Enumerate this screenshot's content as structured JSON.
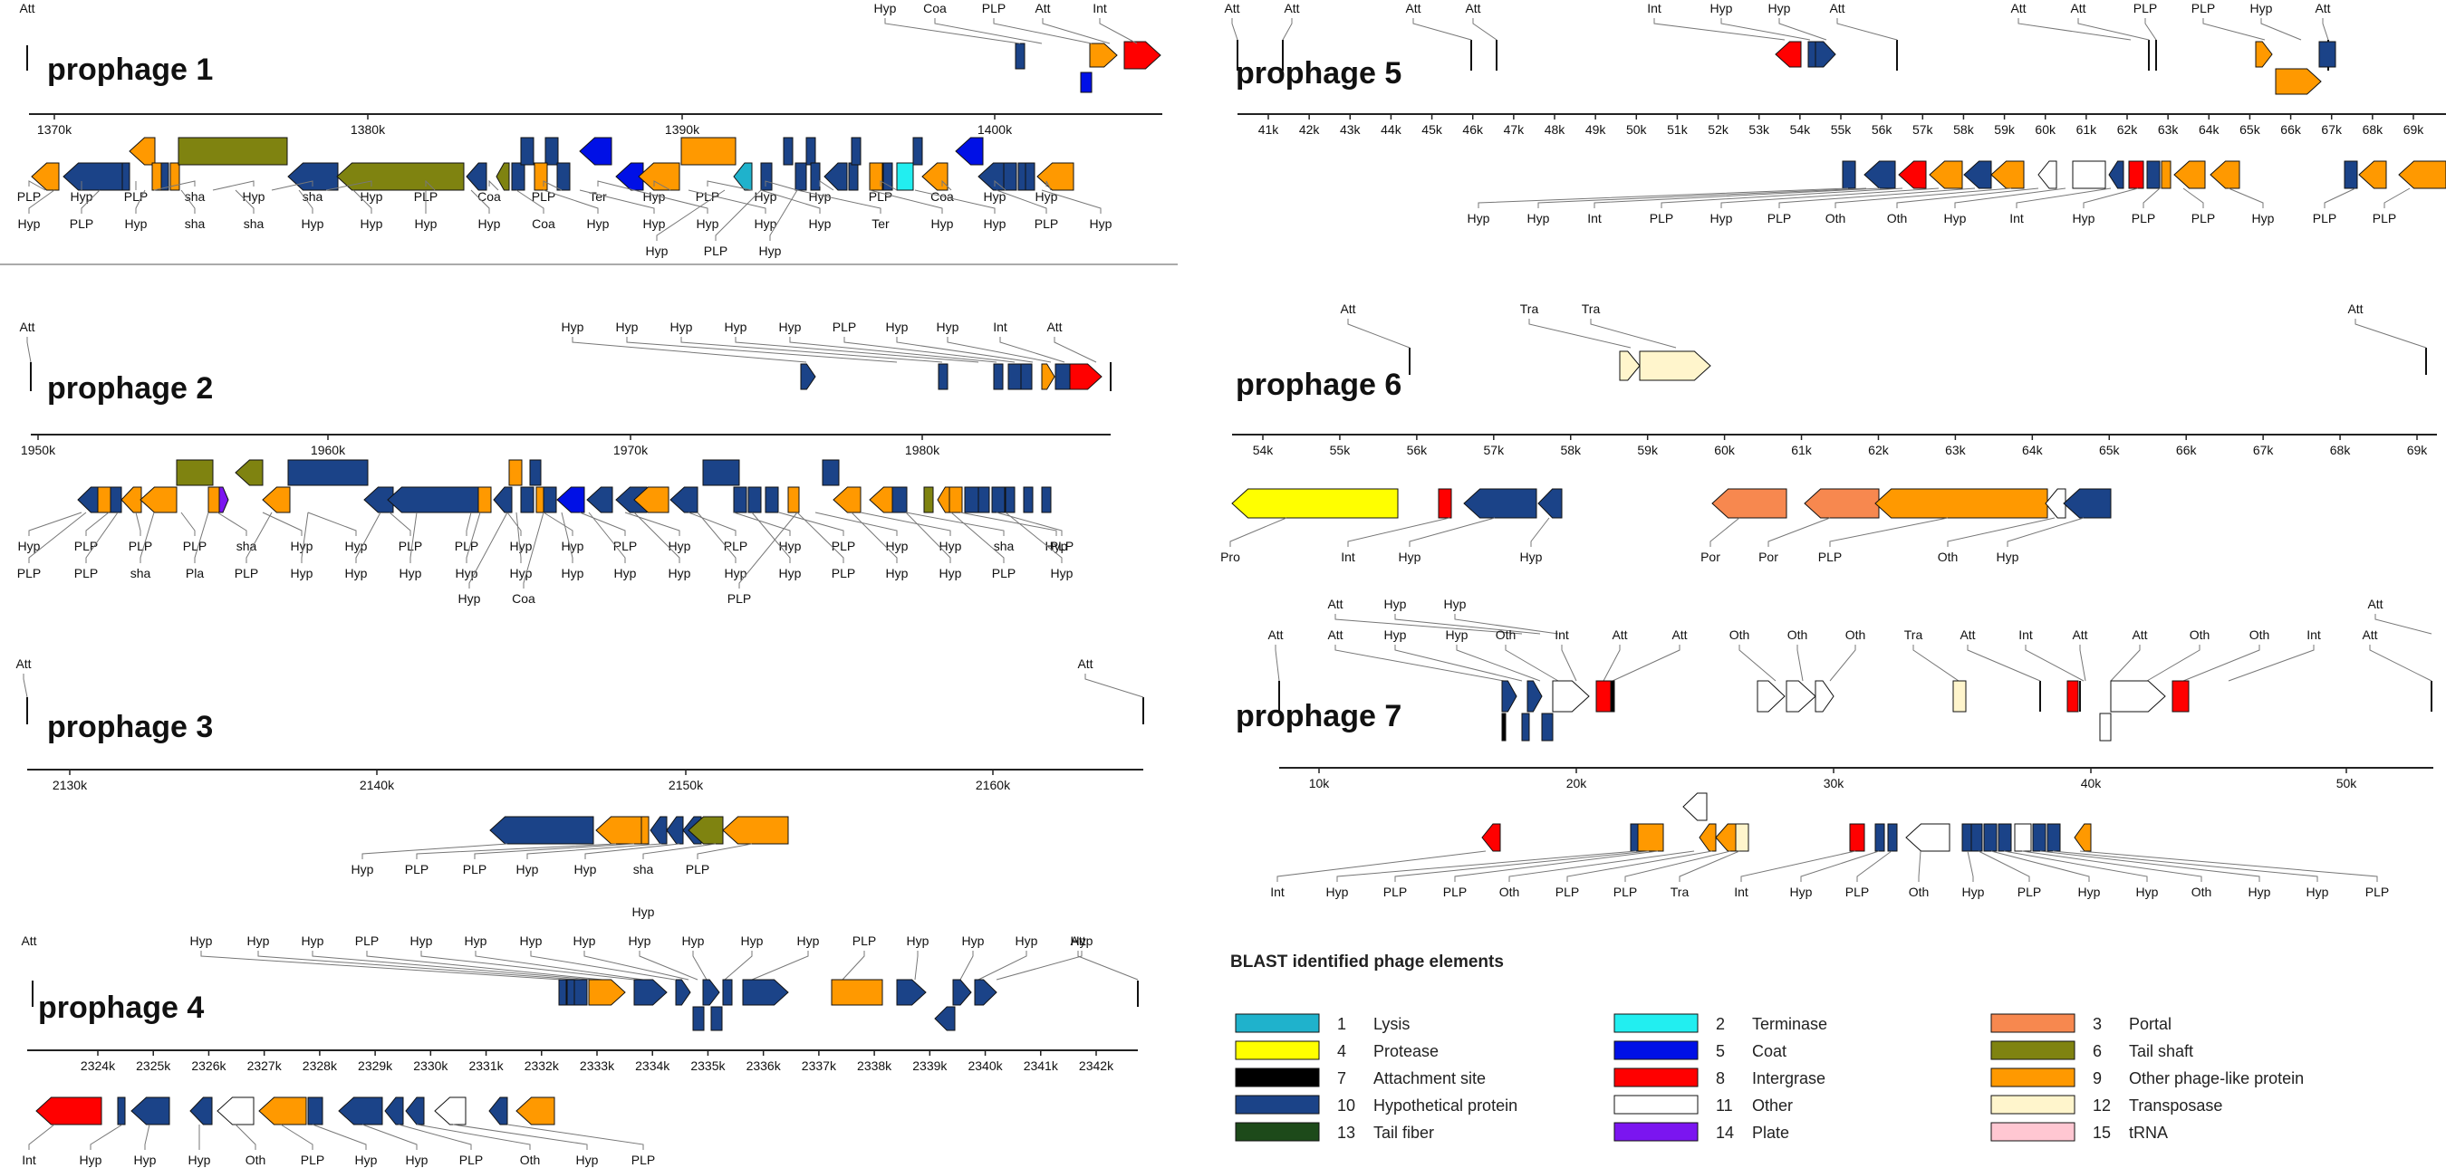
{
  "colors": {
    "lysis": "#1fb2cc",
    "terminase": "#22eef0",
    "portal": "#f7884f",
    "protease": "#ffff00",
    "coat": "#0010e6",
    "tail_shaft": "#7f8310",
    "attachment": "#000000",
    "integrase": "#ff0000",
    "other_phage": "#ff9900",
    "hypothetical": "#1b4388",
    "other": "#ffffff",
    "transposase": "#fff5cc",
    "tail_fiber": "#1d4a1a",
    "plate": "#7b15f0",
    "trna": "#ffc7d2"
  },
  "legend": {
    "title": "BLAST identified phage elements",
    "items": [
      {
        "num": "1",
        "label": "Lysis",
        "color": "#1fb2cc"
      },
      {
        "num": "2",
        "label": "Terminase",
        "color": "#22eef0"
      },
      {
        "num": "3",
        "label": "Portal",
        "color": "#f7884f"
      },
      {
        "num": "4",
        "label": "Protease",
        "color": "#ffff00"
      },
      {
        "num": "5",
        "label": "Coat",
        "color": "#0010e6"
      },
      {
        "num": "6",
        "label": "Tail shaft",
        "color": "#7f8310"
      },
      {
        "num": "7",
        "label": "Attachment site",
        "color": "#000000"
      },
      {
        "num": "8",
        "label": "Intergrase",
        "color": "#ff0000"
      },
      {
        "num": "9",
        "label": "Other phage-like protein",
        "color": "#ff9900"
      },
      {
        "num": "10",
        "label": "Hypothetical protein",
        "color": "#1b4388"
      },
      {
        "num": "11",
        "label": "Other",
        "color": "#ffffff"
      },
      {
        "num": "12",
        "label": "Transposase",
        "color": "#fff5cc"
      },
      {
        "num": "13",
        "label": "Tail fiber",
        "color": "#1d4a1a"
      },
      {
        "num": "14",
        "label": "Plate",
        "color": "#7b15f0"
      },
      {
        "num": "15",
        "label": "tRNA",
        "color": "#ffc7d2"
      }
    ]
  },
  "panels": [
    {
      "id": "p1",
      "title": "prophage 1",
      "axis_ticks": [
        "1370k",
        "1380k",
        "1390k",
        "1400k"
      ],
      "top_labels": [
        "Hyp",
        "Coa",
        "PLP",
        "Att",
        "Int"
      ],
      "bottom_labels": [
        [
          "PLP",
          "Hyp",
          "PLP",
          "sha",
          "Hyp",
          "sha",
          "Hyp",
          "PLP",
          "Coa",
          "PLP",
          "Ter",
          "Hyp",
          "PLP",
          "Hyp",
          "Hyp",
          "PLP",
          "Coa",
          "Hyp",
          "Hyp"
        ],
        [
          "Hyp",
          "PLP",
          "Hyp",
          "sha",
          "sha",
          "Hyp",
          "Hyp",
          "Hyp",
          "Hyp",
          "Coa",
          "Hyp",
          "Hyp",
          "Hyp",
          "Hyp",
          "Hyp",
          "Ter",
          "Hyp",
          "Hyp",
          "PLP",
          "Hyp"
        ],
        [
          "Hyp",
          "PLP",
          "Hyp"
        ]
      ]
    },
    {
      "id": "p2",
      "title": "prophage 2",
      "axis_ticks": [
        "1950k",
        "1960k",
        "1970k",
        "1980k"
      ],
      "top_labels": [
        "Att",
        "Hyp",
        "Hyp",
        "Hyp",
        "Hyp",
        "Hyp",
        "PLP",
        "Hyp",
        "Hyp",
        "Int",
        "Att"
      ],
      "bottom_labels": [
        [
          "Hyp",
          "PLP",
          "PLP",
          "PLP",
          "sha",
          "Hyp",
          "Hyp",
          "PLP",
          "PLP",
          "Hyp",
          "Hyp",
          "PLP",
          "Hyp",
          "PLP",
          "Hyp",
          "PLP",
          "Hyp",
          "Hyp",
          "sha",
          "Hyp",
          "PLP"
        ],
        [
          "PLP",
          "PLP",
          "sha",
          "Pla",
          "PLP",
          "Hyp",
          "Hyp",
          "Hyp",
          "Hyp",
          "Hyp",
          "Hyp",
          "Hyp",
          "Hyp",
          "Hyp",
          "Hyp",
          "PLP",
          "Hyp",
          "Hyp",
          "PLP",
          "Hyp"
        ],
        [
          "Hyp",
          "Coa",
          "PLP"
        ]
      ]
    },
    {
      "id": "p3",
      "title": "prophage 3",
      "axis_ticks": [
        "2130k",
        "2140k",
        "2150k",
        "2160k"
      ],
      "top_labels": [
        "Att",
        "Att"
      ],
      "bottom_labels": [
        [
          "Hyp",
          "PLP",
          "PLP",
          "Hyp",
          "Hyp",
          "sha",
          "PLP"
        ]
      ]
    },
    {
      "id": "p4",
      "title": "prophage 4",
      "axis_ticks": [
        "2324k",
        "2325k",
        "2326k",
        "2327k",
        "2328k",
        "2329k",
        "2330k",
        "2331k",
        "2332k",
        "2333k",
        "2334k",
        "2335k",
        "2336k",
        "2337k",
        "2338k",
        "2339k",
        "2340k",
        "2341k",
        "2342k"
      ],
      "top_labels": [
        "Hyp",
        "Att",
        "Hyp",
        "Hyp",
        "Hyp",
        "PLP",
        "Hyp",
        "Hyp",
        "Hyp",
        "Hyp",
        "Hyp",
        "Hyp",
        "Hyp",
        "Hyp",
        "PLP",
        "Hyp",
        "Hyp",
        "Hyp",
        "Hyp",
        "Att"
      ],
      "bottom_labels": [
        [
          "Int",
          "Hyp",
          "Hyp",
          "Hyp",
          "Oth",
          "PLP",
          "Hyp",
          "Hyp",
          "PLP",
          "Oth",
          "Hyp",
          "PLP"
        ]
      ]
    },
    {
      "id": "p5",
      "title": "prophage 5",
      "axis_ticks": [
        "41k",
        "42k",
        "43k",
        "44k",
        "45k",
        "46k",
        "47k",
        "48k",
        "49k",
        "50k",
        "51k",
        "52k",
        "53k",
        "54k",
        "55k",
        "56k",
        "57k",
        "58k",
        "59k",
        "60k",
        "61k",
        "62k",
        "63k",
        "64k",
        "65k",
        "66k",
        "67k",
        "68k",
        "69k"
      ],
      "top_labels": [
        "Att",
        "Att",
        "Att",
        "Att",
        "Int",
        "Hyp",
        "Hyp",
        "Att",
        "Att",
        "Att",
        "PLP",
        "PLP",
        "Hyp",
        "Att"
      ],
      "bottom_labels": [
        [
          "Hyp",
          "Hyp",
          "Int",
          "PLP",
          "Hyp",
          "PLP",
          "Oth",
          "Oth",
          "Hyp",
          "Int",
          "Hyp",
          "PLP",
          "PLP",
          "Hyp",
          "PLP",
          "PLP"
        ]
      ]
    },
    {
      "id": "p6",
      "title": "prophage 6",
      "axis_ticks": [
        "54k",
        "55k",
        "56k",
        "57k",
        "58k",
        "59k",
        "60k",
        "61k",
        "62k",
        "63k",
        "64k",
        "65k",
        "66k",
        "67k",
        "68k",
        "69k"
      ],
      "top_labels": [
        "Att",
        "Tra",
        "Tra",
        "Att"
      ],
      "bottom_labels": [
        [
          "Pro",
          "Int",
          "Hyp",
          "Hyp",
          "Por",
          "Por",
          "PLP",
          "Oth",
          "Hyp"
        ]
      ]
    },
    {
      "id": "p7",
      "title": "prophage 7",
      "axis_ticks": [
        "10k",
        "20k",
        "30k",
        "40k",
        "50k"
      ],
      "top_labels": [
        [
          "Att",
          "Hyp",
          "Hyp",
          "Att"
        ],
        [
          "Att",
          "Att",
          "Hyp",
          "Hyp",
          "Oth",
          "Int",
          "Att",
          "Att",
          "Oth",
          "Oth",
          "Oth",
          "Tra",
          "Att",
          "Int",
          "Att",
          "Att",
          "Oth",
          "Oth",
          "Int",
          "Att"
        ]
      ],
      "bottom_labels": [
        [
          "Int",
          "Hyp",
          "PLP",
          "PLP",
          "Oth",
          "PLP",
          "PLP",
          "Tra",
          "Int",
          "Hyp",
          "PLP",
          "Oth",
          "Hyp",
          "PLP",
          "Hyp",
          "Hyp",
          "Oth",
          "Hyp",
          "Hyp",
          "PLP"
        ]
      ]
    }
  ]
}
